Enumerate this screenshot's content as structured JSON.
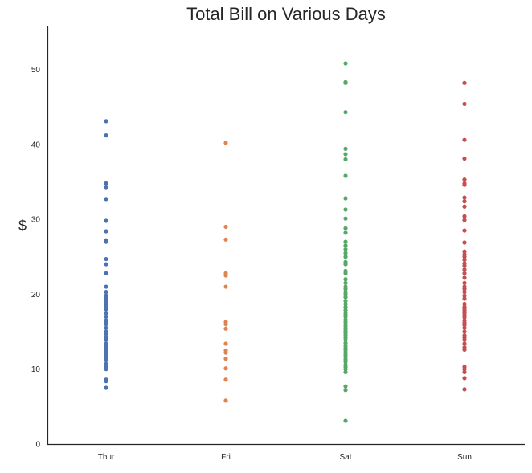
{
  "chart_data": {
    "type": "scatter",
    "title": "Total Bill on Various Days",
    "xlabel": "",
    "ylabel": "$",
    "ylim": [
      0,
      56
    ],
    "yticks": [
      0,
      10,
      20,
      30,
      40,
      50
    ],
    "grid": false,
    "legend": "none",
    "categories": [
      "Thur",
      "Fri",
      "Sat",
      "Sun"
    ],
    "series": [
      {
        "name": "Thur",
        "color": "#4c72b0",
        "values": [
          43.1,
          41.2,
          34.8,
          34.3,
          32.7,
          29.8,
          28.4,
          27.2,
          27.0,
          24.7,
          24.0,
          22.8,
          21.0,
          20.3,
          19.8,
          19.4,
          19.0,
          18.6,
          18.3,
          18.0,
          17.5,
          17.0,
          16.5,
          16.3,
          16.0,
          15.5,
          15.0,
          14.7,
          14.2,
          13.9,
          13.4,
          13.0,
          12.7,
          12.4,
          12.0,
          11.6,
          11.2,
          10.7,
          10.3,
          10.0,
          8.6,
          8.4,
          7.5
        ]
      },
      {
        "name": "Fri",
        "color": "#dd8452",
        "values": [
          40.2,
          29.0,
          27.3,
          22.8,
          22.5,
          21.0,
          16.3,
          16.0,
          15.4,
          13.4,
          12.5,
          12.2,
          11.4,
          10.1,
          8.6,
          5.8
        ]
      },
      {
        "name": "Sat",
        "color": "#55a868",
        "values": [
          50.8,
          48.3,
          48.2,
          44.3,
          39.4,
          38.7,
          38.0,
          35.8,
          32.8,
          31.3,
          30.1,
          28.8,
          28.2,
          27.0,
          26.5,
          26.0,
          25.5,
          25.0,
          24.3,
          24.0,
          23.1,
          22.8,
          22.0,
          21.5,
          21.0,
          20.7,
          20.3,
          20.0,
          19.6,
          19.1,
          18.7,
          18.3,
          17.9,
          17.6,
          17.3,
          17.0,
          16.6,
          16.3,
          16.0,
          15.7,
          15.4,
          15.1,
          14.8,
          14.5,
          14.2,
          13.9,
          13.5,
          13.1,
          12.8,
          12.5,
          12.2,
          11.9,
          11.6,
          11.3,
          11.0,
          10.6,
          10.3,
          10.0,
          9.6,
          7.7,
          7.2,
          3.1
        ]
      },
      {
        "name": "Sun",
        "color": "#c44e52",
        "values": [
          48.2,
          45.4,
          40.6,
          38.1,
          35.3,
          34.8,
          34.6,
          32.9,
          32.4,
          31.7,
          30.4,
          29.9,
          28.5,
          26.9,
          25.7,
          25.3,
          25.0,
          24.6,
          24.1,
          23.8,
          23.3,
          22.8,
          22.2,
          21.5,
          21.0,
          20.7,
          20.3,
          19.8,
          19.4,
          18.7,
          18.3,
          18.0,
          17.8,
          17.5,
          17.2,
          16.9,
          16.5,
          16.2,
          15.9,
          15.5,
          15.0,
          14.5,
          14.2,
          13.9,
          13.4,
          12.9,
          12.6,
          10.3,
          10.0,
          9.6,
          8.8,
          7.3
        ]
      }
    ]
  }
}
